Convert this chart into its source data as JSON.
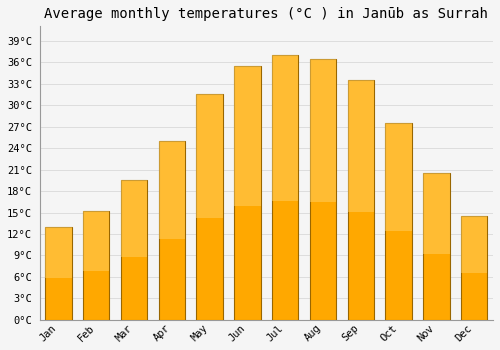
{
  "months": [
    "Jan",
    "Feb",
    "Mar",
    "Apr",
    "May",
    "Jun",
    "Jul",
    "Aug",
    "Sep",
    "Oct",
    "Nov",
    "Dec"
  ],
  "values": [
    13.0,
    15.2,
    19.6,
    25.0,
    31.5,
    35.5,
    37.0,
    36.5,
    33.5,
    27.5,
    20.5,
    14.5
  ],
  "bar_color_light": "#FFB833",
  "bar_color_dark": "#F59500",
  "bar_edge_color": "#CC7700",
  "title": "Average monthly temperatures (°C ) in Janūb as Surrah",
  "ylim": [
    0,
    41
  ],
  "yticks": [
    0,
    3,
    6,
    9,
    12,
    15,
    18,
    21,
    24,
    27,
    30,
    33,
    36,
    39
  ],
  "ytick_labels": [
    "0°C",
    "3°C",
    "6°C",
    "9°C",
    "12°C",
    "15°C",
    "18°C",
    "21°C",
    "24°C",
    "27°C",
    "30°C",
    "33°C",
    "36°C",
    "39°C"
  ],
  "background_color": "#f5f5f5",
  "grid_color": "#dddddd",
  "title_fontsize": 10,
  "tick_fontsize": 7.5,
  "bar_width": 0.7,
  "figsize": [
    5.0,
    3.5
  ],
  "dpi": 100
}
